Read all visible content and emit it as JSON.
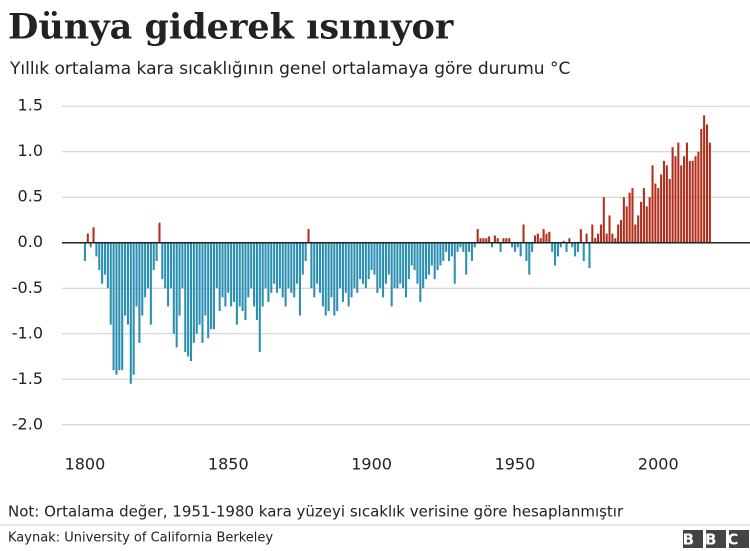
{
  "chart_data": {
    "type": "bar",
    "title": "Dünya giderek ısınıyor",
    "subtitle": "Yıllık ortalama kara sıcaklığının genel ortalamaya göre durumu °C",
    "note": "Not: Ortalama değer, 1951-1980 kara yüzeyi sıcaklık verisine göre hesaplanmıştır",
    "source": "Kaynak: University of California Berkeley",
    "logo": "BBC",
    "positive_color": "#b32d1c",
    "negative_color": "#2a8fb0",
    "grid": true,
    "xlim": [
      1792,
      2032
    ],
    "xticks": [
      1800,
      1850,
      1900,
      1950,
      2000
    ],
    "ylim": [
      -2.2,
      1.7
    ],
    "yticks": [
      1.5,
      {
        "value": 1,
        "label": "1.0"
      },
      0.5,
      {
        "value": 0,
        "label": "0.0"
      },
      -0.5,
      {
        "value": -1,
        "label": "-1.0"
      },
      -1.5,
      {
        "value": -2,
        "label": "-2.0"
      }
    ],
    "x": [
      1800,
      1801,
      1802,
      1803,
      1804,
      1805,
      1806,
      1807,
      1808,
      1809,
      1810,
      1811,
      1812,
      1813,
      1814,
      1815,
      1816,
      1817,
      1818,
      1819,
      1820,
      1821,
      1822,
      1823,
      1824,
      1825,
      1826,
      1827,
      1828,
      1829,
      1830,
      1831,
      1832,
      1833,
      1834,
      1835,
      1836,
      1837,
      1838,
      1839,
      1840,
      1841,
      1842,
      1843,
      1844,
      1845,
      1846,
      1847,
      1848,
      1849,
      1850,
      1851,
      1852,
      1853,
      1854,
      1855,
      1856,
      1857,
      1858,
      1859,
      1860,
      1861,
      1862,
      1863,
      1864,
      1865,
      1866,
      1867,
      1868,
      1869,
      1870,
      1871,
      1872,
      1873,
      1874,
      1875,
      1876,
      1877,
      1878,
      1879,
      1880,
      1881,
      1882,
      1883,
      1884,
      1885,
      1886,
      1887,
      1888,
      1889,
      1890,
      1891,
      1892,
      1893,
      1894,
      1895,
      1896,
      1897,
      1898,
      1899,
      1900,
      1901,
      1902,
      1903,
      1904,
      1905,
      1906,
      1907,
      1908,
      1909,
      1910,
      1911,
      1912,
      1913,
      1914,
      1915,
      1916,
      1917,
      1918,
      1919,
      1920,
      1921,
      1922,
      1923,
      1924,
      1925,
      1926,
      1927,
      1928,
      1929,
      1930,
      1931,
      1932,
      1933,
      1934,
      1935,
      1936,
      1937,
      1938,
      1939,
      1940,
      1941,
      1942,
      1943,
      1944,
      1945,
      1946,
      1947,
      1948,
      1949,
      1950,
      1951,
      1952,
      1953,
      1954,
      1955,
      1956,
      1957,
      1958,
      1959,
      1960,
      1961,
      1962,
      1963,
      1964,
      1965,
      1966,
      1967,
      1968,
      1969,
      1970,
      1971,
      1972,
      1973,
      1974,
      1975,
      1976,
      1977,
      1978,
      1979,
      1980,
      1981,
      1982,
      1983,
      1984,
      1985,
      1986,
      1987,
      1988,
      1989,
      1990,
      1991,
      1992,
      1993,
      1994,
      1995,
      1996,
      1997,
      1998,
      1999,
      2000,
      2001,
      2002,
      2003,
      2004,
      2005,
      2006,
      2007,
      2008,
      2009,
      2010,
      2011,
      2012,
      2013,
      2014,
      2015,
      2016,
      2017,
      2018
    ],
    "values": [
      -0.2,
      0.1,
      -0.05,
      0.17,
      -0.15,
      -0.3,
      -0.45,
      -0.35,
      -0.5,
      -0.9,
      -1.4,
      -1.45,
      -1.4,
      -1.4,
      -0.8,
      -0.9,
      -1.55,
      -1.45,
      -0.7,
      -1.1,
      -0.8,
      -0.6,
      -0.5,
      -0.9,
      -0.3,
      -0.2,
      0.22,
      -0.4,
      -0.5,
      -0.7,
      -0.5,
      -1.0,
      -1.15,
      -0.8,
      -0.5,
      -1.2,
      -1.25,
      -1.3,
      -1.1,
      -1.0,
      -0.9,
      -1.1,
      -0.8,
      -1.05,
      -0.95,
      -0.95,
      -0.5,
      -0.75,
      -0.6,
      -0.7,
      -0.55,
      -0.7,
      -0.65,
      -0.9,
      -0.7,
      -0.75,
      -0.85,
      -0.6,
      -0.5,
      -0.7,
      -0.85,
      -1.2,
      -0.7,
      -0.5,
      -0.65,
      -0.55,
      -0.45,
      -0.55,
      -0.5,
      -0.6,
      -0.7,
      -0.5,
      -0.55,
      -0.6,
      -0.45,
      -0.8,
      -0.35,
      -0.2,
      0.15,
      -0.5,
      -0.6,
      -0.45,
      -0.55,
      -0.7,
      -0.8,
      -0.75,
      -0.6,
      -0.8,
      -0.75,
      -0.5,
      -0.65,
      -0.55,
      -0.7,
      -0.6,
      -0.5,
      -0.55,
      -0.4,
      -0.45,
      -0.5,
      -0.4,
      -0.3,
      -0.35,
      -0.55,
      -0.5,
      -0.6,
      -0.45,
      -0.35,
      -0.7,
      -0.5,
      -0.5,
      -0.45,
      -0.5,
      -0.6,
      -0.4,
      -0.25,
      -0.3,
      -0.45,
      -0.65,
      -0.5,
      -0.4,
      -0.35,
      -0.25,
      -0.4,
      -0.3,
      -0.25,
      -0.2,
      -0.1,
      -0.2,
      -0.15,
      -0.45,
      -0.1,
      -0.05,
      -0.1,
      -0.35,
      -0.1,
      -0.2,
      -0.05,
      0.15,
      0.05,
      0.05,
      0.05,
      0.07,
      -0.05,
      0.08,
      0.05,
      -0.1,
      0.05,
      0.05,
      0.05,
      -0.05,
      -0.1,
      -0.05,
      -0.15,
      0.2,
      -0.2,
      -0.35,
      -0.1,
      0.08,
      0.1,
      0.05,
      0.15,
      0.1,
      0.12,
      -0.1,
      -0.25,
      -0.15,
      -0.05,
      0.02,
      -0.1,
      0.05,
      -0.05,
      -0.15,
      -0.1,
      0.15,
      -0.2,
      0.1,
      -0.28,
      0.2,
      0.05,
      0.1,
      0.2,
      0.5,
      0.1,
      0.3,
      0.1,
      0.05,
      0.2,
      0.25,
      0.5,
      0.4,
      0.55,
      0.6,
      0.2,
      0.3,
      0.45,
      0.6,
      0.4,
      0.5,
      0.85,
      0.65,
      0.6,
      0.75,
      0.9,
      0.85,
      0.7,
      1.05,
      0.95,
      1.1,
      0.85,
      0.95,
      1.1,
      0.9,
      0.9,
      0.95,
      1.0,
      1.25,
      1.4,
      1.3,
      1.1
    ]
  }
}
